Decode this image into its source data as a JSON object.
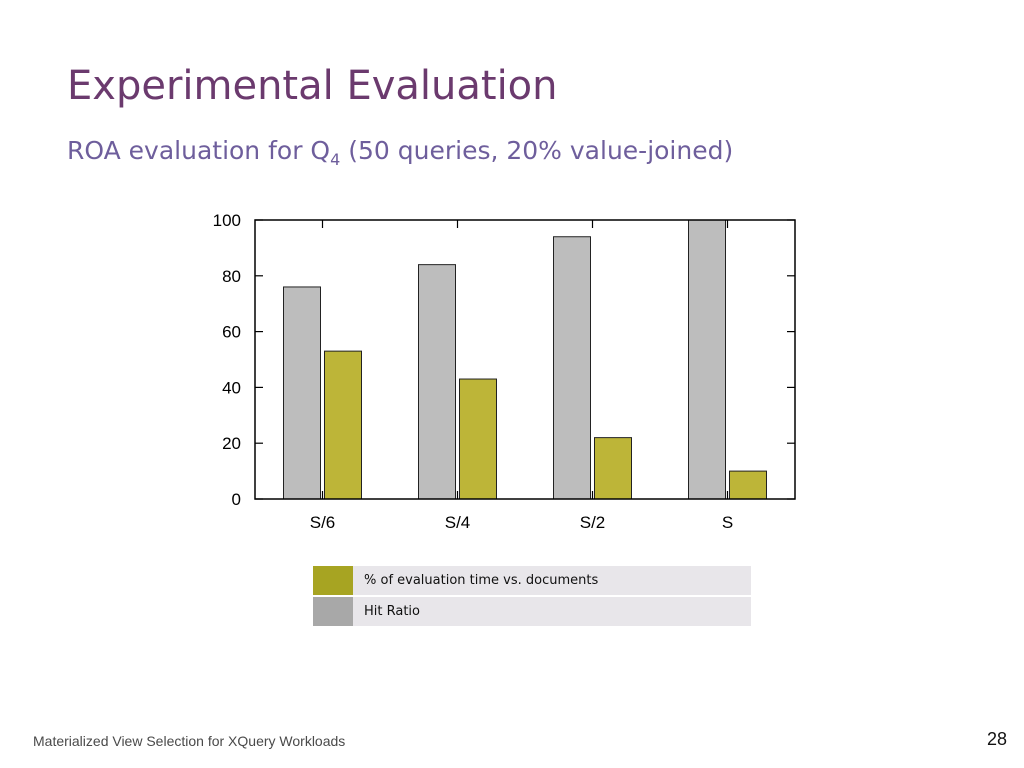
{
  "slide": {
    "title": "Experimental Evaluation",
    "subtitle_pre": "ROA evaluation for Q",
    "subtitle_sub": "4",
    "subtitle_post": " (50 queries, 20% value-joined)",
    "footer": "Materialized View Selection for XQuery Workloads",
    "page_number": "28"
  },
  "legend": [
    {
      "label": "% of evaluation time vs. documents",
      "color": "#a7a422"
    },
    {
      "label": "Hit Ratio",
      "color": "#a8a8a8"
    }
  ],
  "chart_data": {
    "type": "bar",
    "title": "",
    "xlabel": "",
    "ylabel": "",
    "categories": [
      "S/6",
      "S/4",
      "S/2",
      "S"
    ],
    "ylim": [
      0,
      100
    ],
    "yticks": [
      0,
      20,
      40,
      60,
      80,
      100
    ],
    "grid": false,
    "series": [
      {
        "name": "Hit Ratio",
        "values": [
          76,
          84,
          94,
          100
        ],
        "color": "#bdbdbd"
      },
      {
        "name": "% of evaluation time vs. documents",
        "values": [
          53,
          43,
          22,
          10
        ],
        "color": "#bdb538"
      }
    ]
  }
}
